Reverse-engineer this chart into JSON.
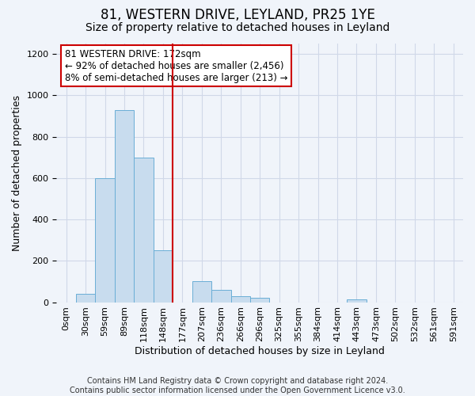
{
  "title": "81, WESTERN DRIVE, LEYLAND, PR25 1YE",
  "subtitle": "Size of property relative to detached houses in Leyland",
  "xlabel": "Distribution of detached houses by size in Leyland",
  "ylabel": "Number of detached properties",
  "bar_labels": [
    "0sqm",
    "30sqm",
    "59sqm",
    "89sqm",
    "118sqm",
    "148sqm",
    "177sqm",
    "207sqm",
    "236sqm",
    "266sqm",
    "296sqm",
    "325sqm",
    "355sqm",
    "384sqm",
    "414sqm",
    "443sqm",
    "473sqm",
    "502sqm",
    "532sqm",
    "561sqm",
    "591sqm"
  ],
  "bar_values": [
    0,
    40,
    600,
    930,
    700,
    250,
    0,
    100,
    58,
    30,
    20,
    0,
    0,
    0,
    0,
    15,
    0,
    0,
    0,
    0,
    0
  ],
  "bar_color": "#c8dcee",
  "bar_edge_color": "#6aaed6",
  "vline_color": "#cc0000",
  "vline_pos": 5.5,
  "annotation_text_line1": "81 WESTERN DRIVE: 172sqm",
  "annotation_text_line2": "← 92% of detached houses are smaller (2,456)",
  "annotation_text_line3": "8% of semi-detached houses are larger (213) →",
  "ylim": [
    0,
    1250
  ],
  "yticks": [
    0,
    200,
    400,
    600,
    800,
    1000,
    1200
  ],
  "footer_text": "Contains HM Land Registry data © Crown copyright and database right 2024.\nContains public sector information licensed under the Open Government Licence v3.0.",
  "title_fontsize": 12,
  "subtitle_fontsize": 10,
  "axis_label_fontsize": 9,
  "tick_fontsize": 8,
  "annotation_fontsize": 8.5,
  "footer_fontsize": 7,
  "bg_color": "#f0f4fa",
  "grid_color": "#d0d8e8"
}
